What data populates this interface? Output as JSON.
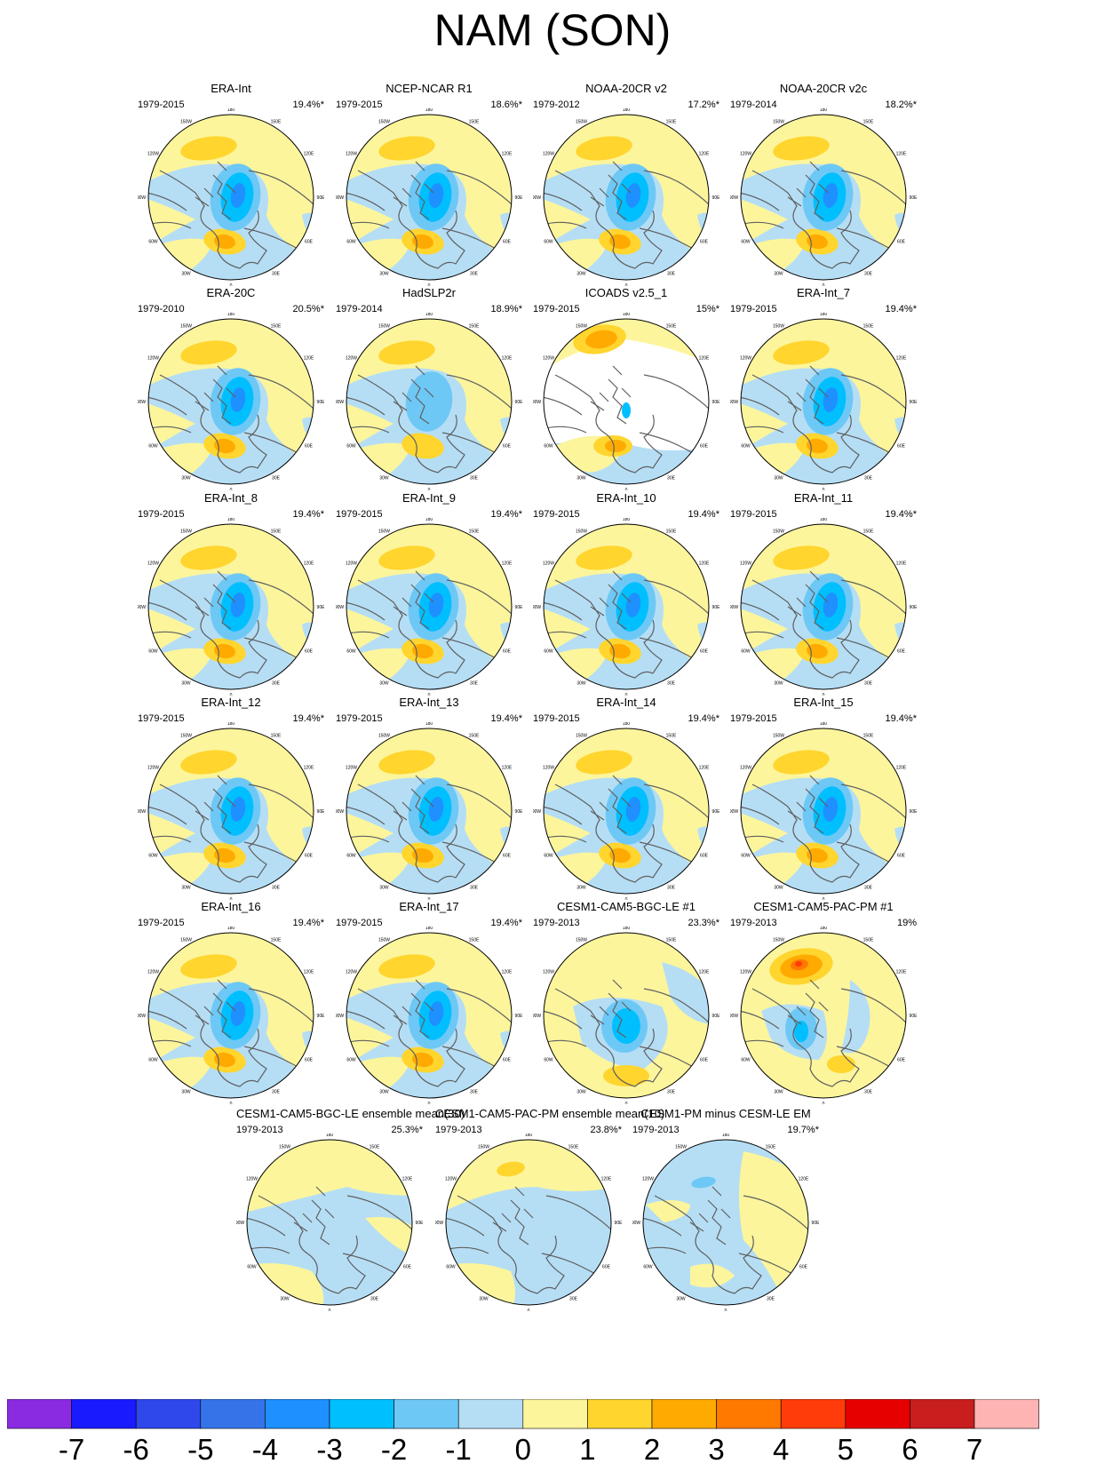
{
  "title": "NAM (SON)",
  "lon_labels": [
    "180",
    "150E",
    "120E",
    "90E",
    "60E",
    "30E",
    "0",
    "30W",
    "60W",
    "90W",
    "120W",
    "150W"
  ],
  "panels": [
    {
      "title": "ERA-Int",
      "period": "1979-2015",
      "pct": "19.4%*",
      "style": "era"
    },
    {
      "title": "NCEP-NCAR R1",
      "period": "1979-2015",
      "pct": "18.6%*",
      "style": "era"
    },
    {
      "title": "NOAA-20CR v2",
      "period": "1979-2012",
      "pct": "17.2%*",
      "style": "era"
    },
    {
      "title": "NOAA-20CR v2c",
      "period": "1979-2014",
      "pct": "18.2%*",
      "style": "era"
    },
    {
      "title": "ERA-20C",
      "period": "1979-2010",
      "pct": "20.5%*",
      "style": "era"
    },
    {
      "title": "HadSLP2r",
      "period": "1979-2014",
      "pct": "18.9%*",
      "style": "had"
    },
    {
      "title": "ICOADS v2.5_1",
      "period": "1979-2015",
      "pct": "15%*",
      "style": "icoads"
    },
    {
      "title": "ERA-Int_7",
      "period": "1979-2015",
      "pct": "19.4%*",
      "style": "era"
    },
    {
      "title": "ERA-Int_8",
      "period": "1979-2015",
      "pct": "19.4%*",
      "style": "era"
    },
    {
      "title": "ERA-Int_9",
      "period": "1979-2015",
      "pct": "19.4%*",
      "style": "era"
    },
    {
      "title": "ERA-Int_10",
      "period": "1979-2015",
      "pct": "19.4%*",
      "style": "era"
    },
    {
      "title": "ERA-Int_11",
      "period": "1979-2015",
      "pct": "19.4%*",
      "style": "era"
    },
    {
      "title": "ERA-Int_12",
      "period": "1979-2015",
      "pct": "19.4%*",
      "style": "era"
    },
    {
      "title": "ERA-Int_13",
      "period": "1979-2015",
      "pct": "19.4%*",
      "style": "era"
    },
    {
      "title": "ERA-Int_14",
      "period": "1979-2015",
      "pct": "19.4%*",
      "style": "era"
    },
    {
      "title": "ERA-Int_15",
      "period": "1979-2015",
      "pct": "19.4%*",
      "style": "era"
    },
    {
      "title": "ERA-Int_16",
      "period": "1979-2015",
      "pct": "19.4%*",
      "style": "era"
    },
    {
      "title": "ERA-Int_17",
      "period": "1979-2015",
      "pct": "19.4%*",
      "style": "era"
    },
    {
      "title": "CESM1-CAM5-BGC-LE #1",
      "period": "1979-2013",
      "pct": "23.3%*",
      "style": "bgc"
    },
    {
      "title": "CESM1-CAM5-PAC-PM #1",
      "period": "1979-2013",
      "pct": "19%",
      "style": "pac"
    },
    {
      "title": "CESM1-CAM5-BGC-LE ensemble mean(30)",
      "period": "1979-2013",
      "pct": "25.3%*",
      "style": "em"
    },
    {
      "title": "CESM1-CAM5-PAC-PM ensemble mean(10)",
      "period": "1979-2013",
      "pct": "23.8%*",
      "style": "pacem"
    },
    {
      "title": "CESM1-PM minus CESM-LE EM",
      "period": "1979-2013",
      "pct": "19.7%*",
      "style": "diff"
    }
  ],
  "colorbar": {
    "colors": [
      "#8a2be2",
      "#1a1aff",
      "#2e48ea",
      "#3474e8",
      "#1e90ff",
      "#00bfff",
      "#6ec8f5",
      "#b5def5",
      "#fcf59c",
      "#ffd52e",
      "#ffaa00",
      "#ff7800",
      "#ff3c0a",
      "#e60000",
      "#c81e1e",
      "#ffb4b4"
    ],
    "tick_labels": [
      "-7",
      "-6",
      "-5",
      "-4",
      "-3",
      "-2",
      "-1",
      "0",
      "1",
      "2",
      "3",
      "4",
      "5",
      "6",
      "7"
    ]
  }
}
